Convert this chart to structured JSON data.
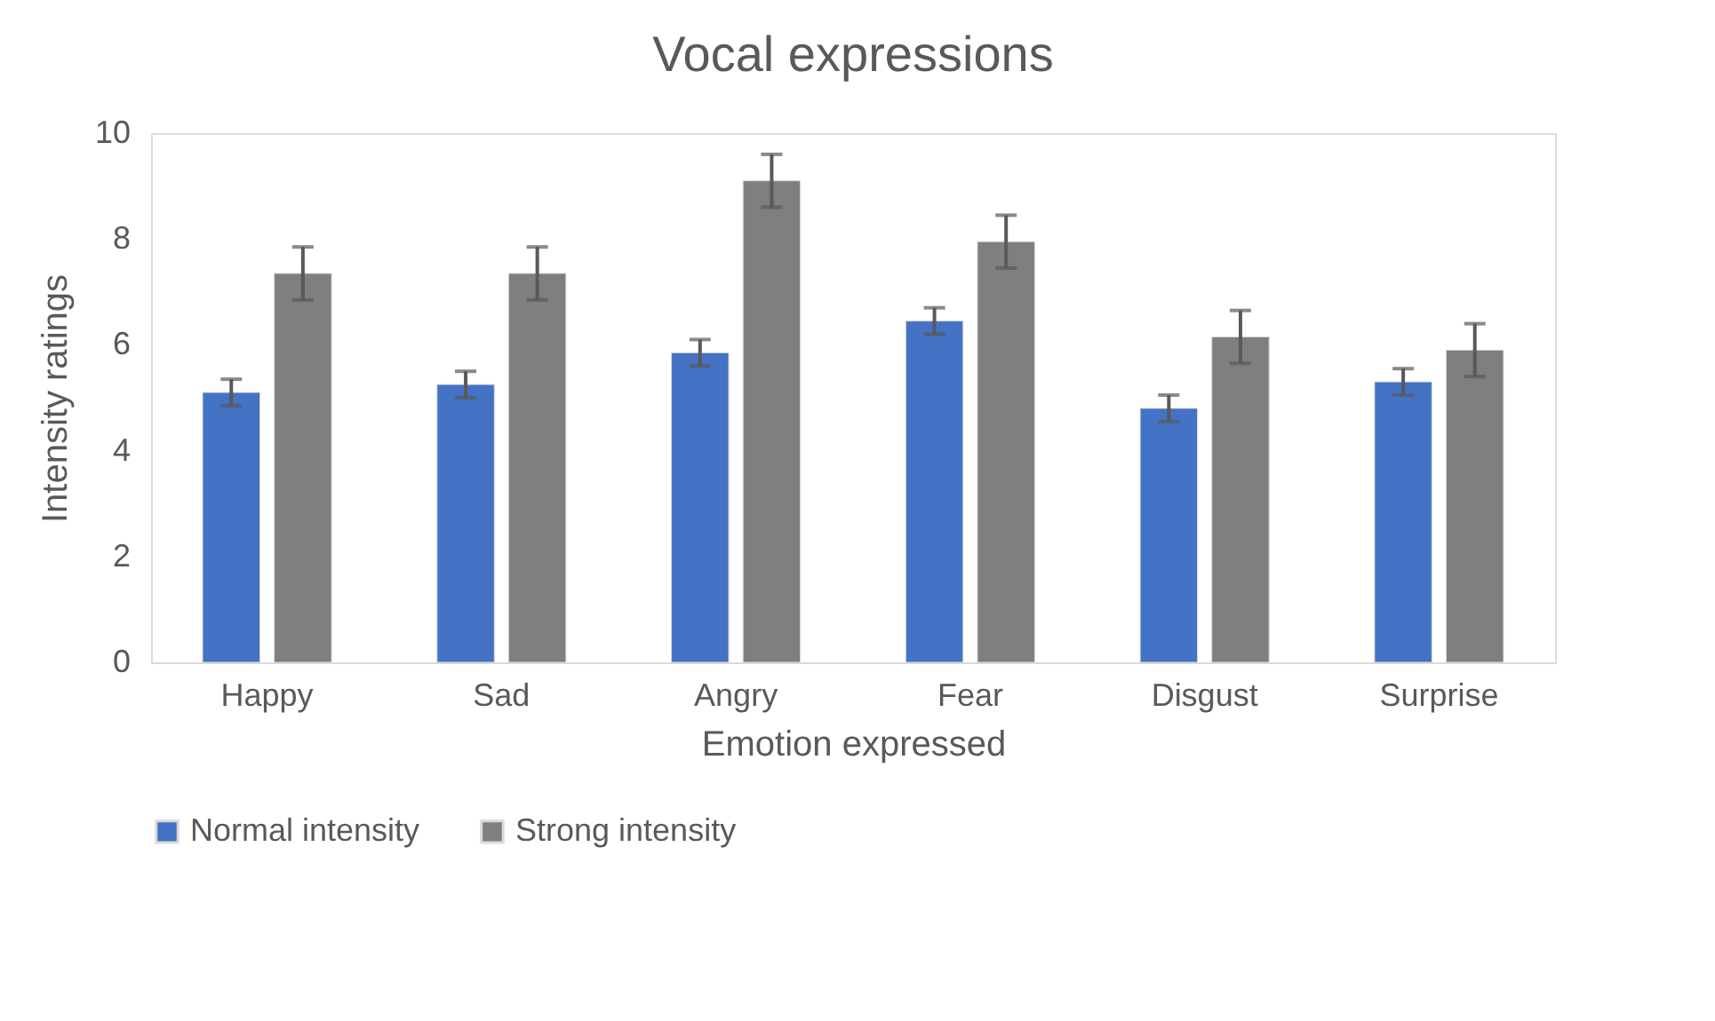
{
  "chart_data": {
    "type": "bar",
    "title": "Vocal expressions",
    "xlabel": "Emotion expressed",
    "ylabel": "Intensity ratings",
    "categories": [
      "Happy",
      "Sad",
      "Angry",
      "Fear",
      "Disgust",
      "Surprise"
    ],
    "series": [
      {
        "name": "Normal intensity",
        "color": "#4472c4",
        "values": [
          5.1,
          5.25,
          5.85,
          6.45,
          4.8,
          5.3
        ],
        "errors": [
          0.25,
          0.25,
          0.25,
          0.25,
          0.25,
          0.25
        ]
      },
      {
        "name": "Strong intensity",
        "color": "#7f7f7f",
        "values": [
          7.35,
          7.35,
          9.1,
          7.95,
          6.15,
          5.9
        ],
        "errors": [
          0.5,
          0.5,
          0.5,
          0.5,
          0.5,
          0.5
        ]
      }
    ],
    "ylim": [
      0,
      10
    ],
    "yticks": [
      0,
      2,
      4,
      6,
      8,
      10
    ],
    "grid": false,
    "legend": "bottom"
  }
}
